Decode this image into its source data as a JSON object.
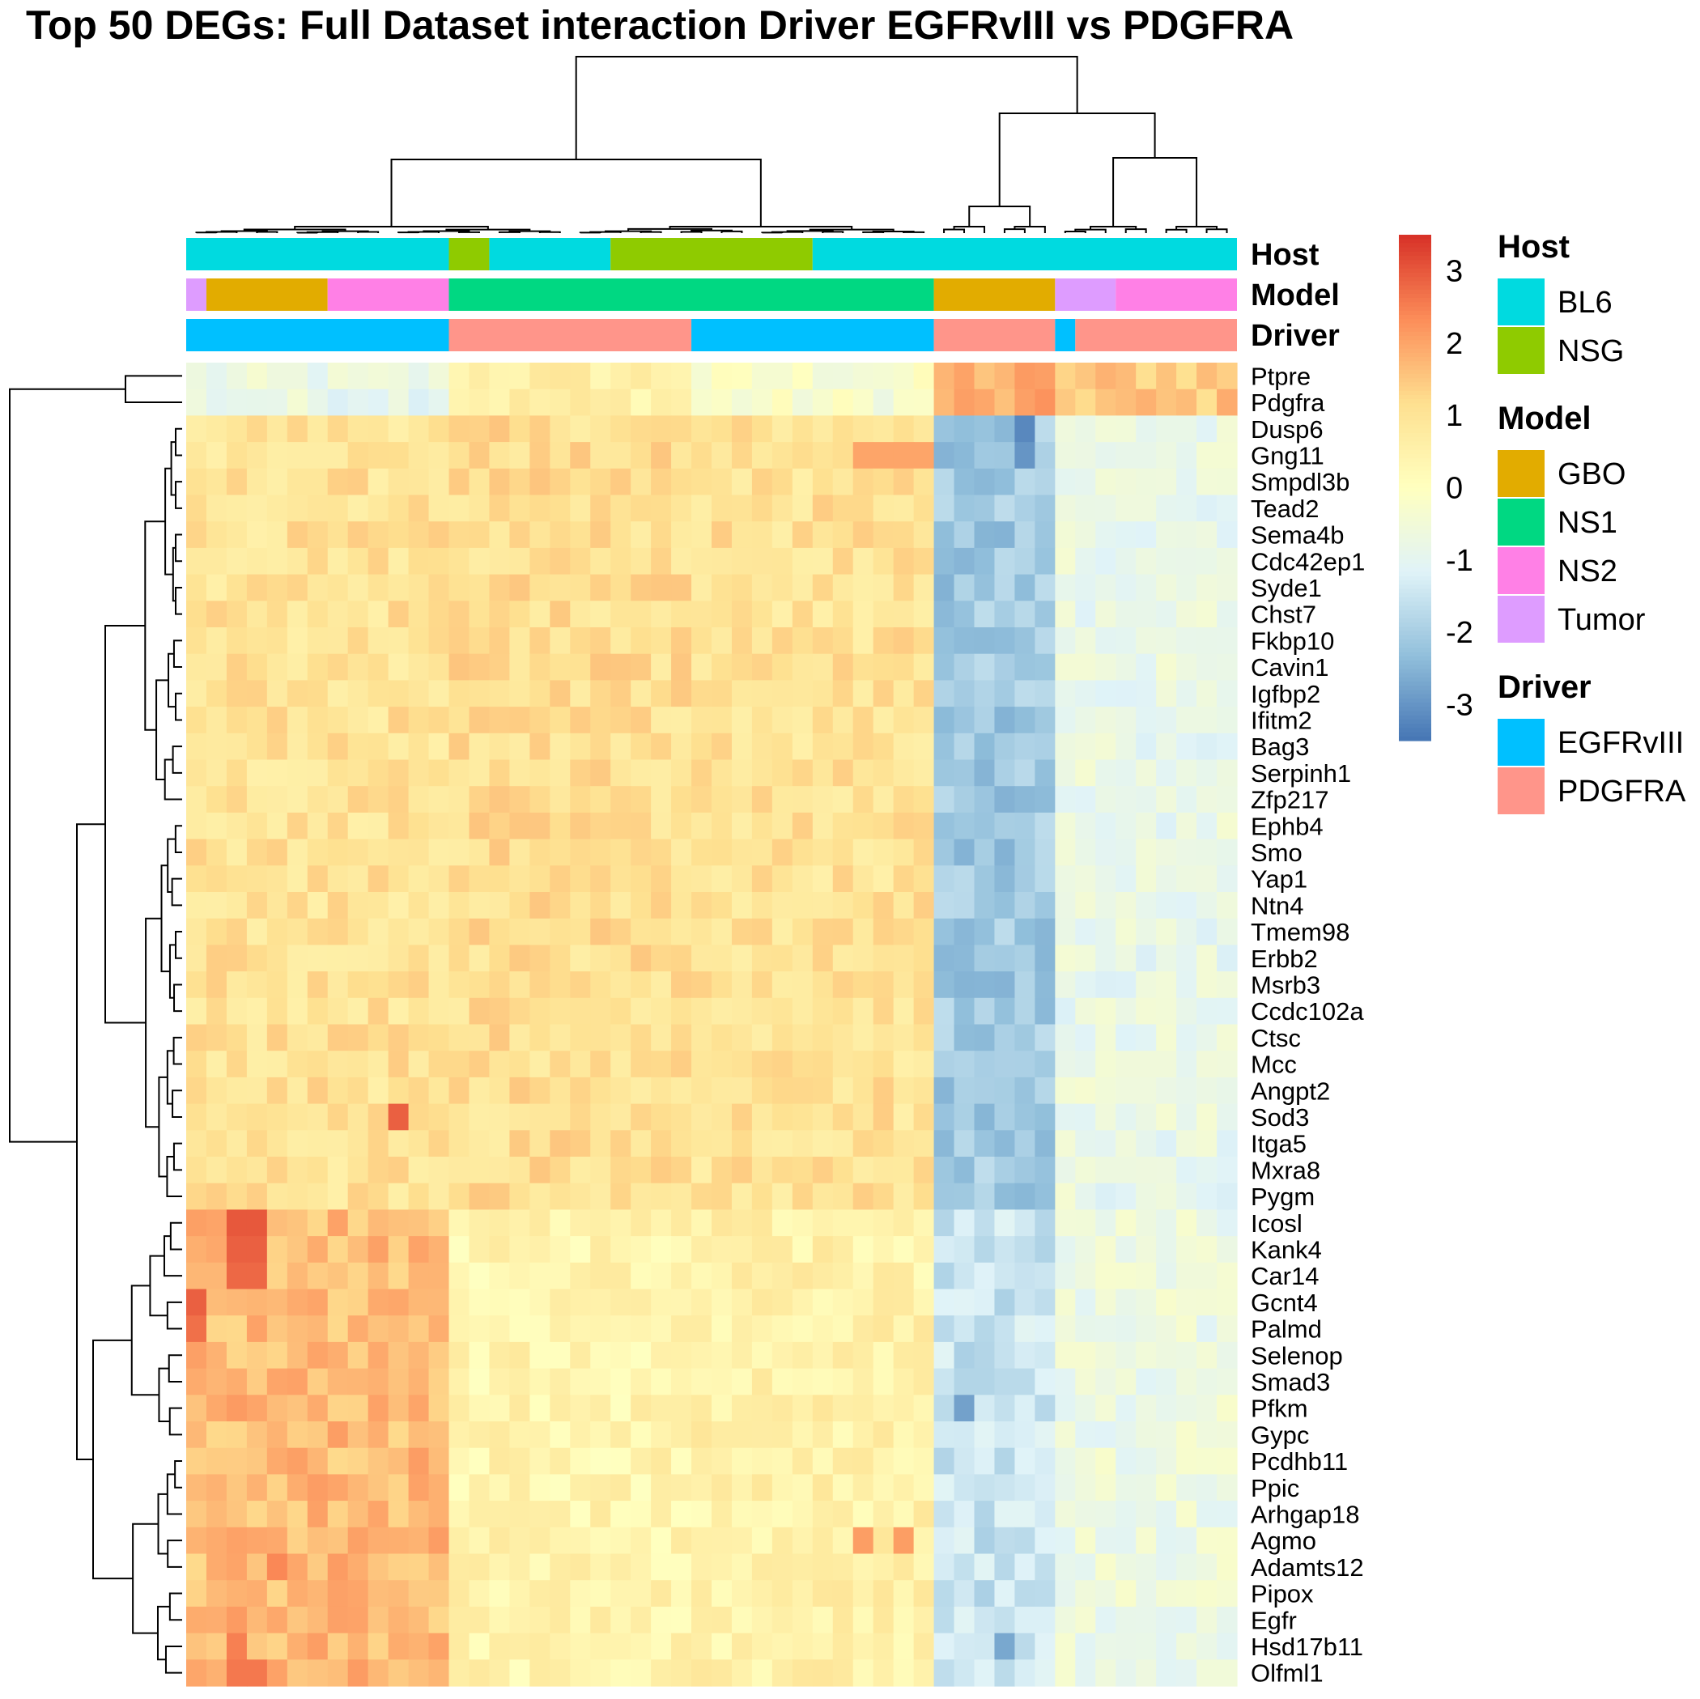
{
  "chart_data": {
    "type": "heatmap",
    "title": "Top 50 DEGs: Full Dataset interaction Driver EGFRvIII vs PDGFRA",
    "n_samples": 52,
    "rows": [
      "Ptpre",
      "Pdgfra",
      "Dusp6",
      "Gng11",
      "Smpdl3b",
      "Tead2",
      "Sema4b",
      "Cdc42ep1",
      "Syde1",
      "Chst7",
      "Fkbp10",
      "Cavin1",
      "Igfbp2",
      "Ifitm2",
      "Bag3",
      "Serpinh1",
      "Zfp217",
      "Ephb4",
      "Smo",
      "Yap1",
      "Ntn4",
      "Tmem98",
      "Erbb2",
      "Msrb3",
      "Ccdc102a",
      "Ctsc",
      "Mcc",
      "Angpt2",
      "Sod3",
      "Itga5",
      "Mxra8",
      "Pygm",
      "Icosl",
      "Kank4",
      "Car14",
      "Gcnt4",
      "Palmd",
      "Selenop",
      "Smad3",
      "Pfkm",
      "Gypc",
      "Pcdhb11",
      "Ppic",
      "Arhgap18",
      "Agmo",
      "Adamts12",
      "Pipox",
      "Egfr",
      "Hsd17b11",
      "Olfml1"
    ],
    "annotations": [
      {
        "name": "Host",
        "segments": [
          [
            "BL6",
            13
          ],
          [
            "NSG",
            2
          ],
          [
            "BL6",
            6
          ],
          [
            "NSG",
            10
          ],
          [
            "BL6",
            21
          ]
        ]
      },
      {
        "name": "Model",
        "segments": [
          [
            "Tumor",
            1
          ],
          [
            "GBO",
            6
          ],
          [
            "NS2",
            6
          ],
          [
            "NS1",
            24
          ],
          [
            "GBO",
            6
          ],
          [
            "Tumor",
            3
          ],
          [
            "NS2",
            6
          ]
        ]
      },
      {
        "name": "Driver",
        "segments": [
          [
            "EGFRvIII",
            13
          ],
          [
            "PDGFRA",
            12
          ],
          [
            "EGFRvIII",
            12
          ],
          [
            "PDGFRA",
            6
          ],
          [
            "EGFRvIII",
            1
          ],
          [
            "PDGFRA",
            8
          ]
        ]
      }
    ],
    "block_means": [
      {
        "rows": [
          0,
          1
        ],
        "blocks": [
          -0.8,
          0.6,
          -0.3,
          1.8,
          1.5
        ]
      },
      {
        "rows": [
          2,
          31
        ],
        "blocks": [
          1.0,
          1.1,
          1.0,
          -2.1,
          -0.8
        ]
      },
      {
        "rows": [
          32,
          49
        ],
        "blocks": [
          1.7,
          0.4,
          0.5,
          -1.5,
          -0.7
        ]
      }
    ],
    "block_spans": [
      [
        0,
        13
      ],
      [
        13,
        25
      ],
      [
        25,
        37
      ],
      [
        37,
        43
      ],
      [
        43,
        52
      ]
    ],
    "notable_cells": [
      {
        "row": "Icosl",
        "cols": [
          2,
          3
        ],
        "value": 3.0
      },
      {
        "row": "Kank4",
        "cols": [
          2,
          3
        ],
        "value": 2.9
      },
      {
        "row": "Car14",
        "cols": [
          2,
          3
        ],
        "value": 2.8
      },
      {
        "row": "Gcnt4",
        "cols": [
          0
        ],
        "value": 2.9
      },
      {
        "row": "Palmd",
        "cols": [
          0
        ],
        "value": 2.7
      },
      {
        "row": "Sod3",
        "cols": [
          10
        ],
        "value": 2.9
      },
      {
        "row": "Olfml1",
        "cols": [
          2,
          3
        ],
        "value": 2.6
      },
      {
        "row": "Hsd17b11",
        "cols": [
          2
        ],
        "value": 2.5
      },
      {
        "row": "Adamts12",
        "cols": [
          4
        ],
        "value": 2.4
      },
      {
        "row": "Gng11",
        "cols": [
          33,
          34,
          35,
          36
        ],
        "value": 2.0
      },
      {
        "row": "Agmo",
        "cols": [
          33,
          35
        ],
        "value": 2.1
      },
      {
        "row": "Dusp6",
        "cols": [
          41
        ],
        "value": -3.2
      },
      {
        "row": "Gng11",
        "cols": [
          41
        ],
        "value": -3.0
      },
      {
        "row": "Pfkm",
        "cols": [
          38
        ],
        "value": -2.8
      },
      {
        "row": "Hsd17b11",
        "cols": [
          40
        ],
        "value": -2.7
      }
    ],
    "colorbar": {
      "min": -3.5,
      "max": 3.5,
      "ticks": [
        3,
        2,
        1,
        0,
        -1,
        -2,
        -3
      ],
      "colors": [
        "#4575B4",
        "#91BFDB",
        "#E0F3F8",
        "#FFFFBF",
        "#FEE090",
        "#FC8D59",
        "#D73027"
      ]
    },
    "legends": [
      {
        "title": "Host",
        "items": [
          {
            "label": "BL6",
            "color": "#00DAE0"
          },
          {
            "label": "NSG",
            "color": "#8FCB00"
          }
        ]
      },
      {
        "title": "Model",
        "items": [
          {
            "label": "GBO",
            "color": "#E2AC00"
          },
          {
            "label": "NS1",
            "color": "#00D882"
          },
          {
            "label": "NS2",
            "color": "#FF80E6"
          },
          {
            "label": "Tumor",
            "color": "#DE9CFF"
          }
        ]
      },
      {
        "title": "Driver",
        "items": [
          {
            "label": "EGFRvIII",
            "color": "#00C0FF"
          },
          {
            "label": "PDGFRA",
            "color": "#FF958A"
          }
        ]
      }
    ]
  }
}
